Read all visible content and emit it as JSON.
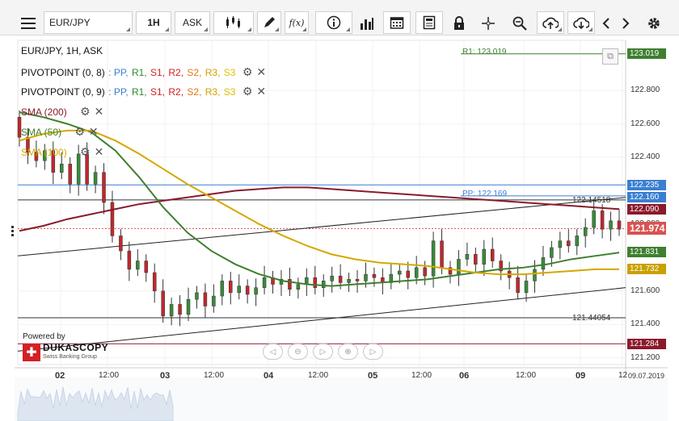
{
  "toolbar": {
    "instrument": "EUR/JPY",
    "timeframe": "1H",
    "side": "ASK",
    "fx_label": "f(x)"
  },
  "legend": {
    "title": "EUR/JPY, 1H, ASK",
    "pivots": [
      {
        "label": "PIVOTPOINT (0, 8)",
        "levels": [
          ": PP,",
          "R1,",
          "S1,",
          "R2,",
          "S2,",
          "R3,",
          "S3"
        ]
      },
      {
        "label": "PIVOTPOINT (0, 9)",
        "levels": [
          ": PP,",
          "R1,",
          "S1,",
          "R2,",
          "S2,",
          "R3,",
          "S3"
        ]
      }
    ],
    "level_colors": [
      "#3a7fd0",
      "#2a8a2a",
      "#d02020",
      "#d02020",
      "#e07a10",
      "#d4a000",
      "#e0c000"
    ],
    "sma": [
      {
        "label": "SMA (200)",
        "color": "#8b1a2b"
      },
      {
        "label": "SMA (50)",
        "color": "#3f7f2f"
      },
      {
        "label": "SMA (100)",
        "color": "#d4a800"
      }
    ]
  },
  "annotations": {
    "r1": "R1: 123.019",
    "pp": "PP: 122.169",
    "hline_high": "122.14518",
    "hline_low": "121.44054",
    "powered_by": "Powered by",
    "brand": "DUKASCOPY",
    "brand_sub": "Swiss Banking Group"
  },
  "price_tags": [
    {
      "value": "123.019",
      "color": "#3f7f2f",
      "y": 123.019
    },
    {
      "value": "122.235",
      "color": "#3a7fd0",
      "y": 122.235
    },
    {
      "value": "122.160",
      "color": "#3a7fd0",
      "y": 122.16
    },
    {
      "value": "122.090",
      "color": "#8b1a2b",
      "y": 122.09
    },
    {
      "value": "121.974",
      "color": "#d9534f",
      "y": 121.974
    },
    {
      "value": "121.831",
      "color": "#3f7f2f",
      "y": 121.831
    },
    {
      "value": "121.732",
      "color": "#c9a000",
      "y": 121.732
    },
    {
      "value": "121.284",
      "color": "#8b1a2b",
      "y": 121.284
    }
  ],
  "chart_data": {
    "type": "candlestick",
    "title": "EUR/JPY, 1H, ASK",
    "y_ticks": [
      "122.800",
      "122.600",
      "122.400",
      "122.000",
      "121.600",
      "121.400",
      "121.200"
    ],
    "y_tick_values": [
      122.8,
      122.6,
      122.4,
      122.0,
      121.6,
      121.4,
      121.2
    ],
    "ylim": [
      121.16,
      123.1
    ],
    "x_labels": [
      "02",
      "12:00",
      "03",
      "12:00",
      "04",
      "12:00",
      "05",
      "12:00",
      "06",
      "12:00",
      "09",
      "12",
      "09.07.2019"
    ],
    "x_day_labels": [
      "02",
      "03",
      "04",
      "05",
      "06",
      "09"
    ],
    "series": [
      {
        "name": "SMA (200)",
        "values": [
          121.96,
          121.99,
          122.03,
          122.06,
          122.09,
          122.12,
          122.14,
          122.16,
          122.18,
          122.2,
          122.21,
          122.22,
          122.22,
          122.21,
          122.2,
          122.19,
          122.18,
          122.17,
          122.16,
          122.15,
          122.14,
          122.13,
          122.12,
          122.11,
          122.1,
          122.09
        ]
      },
      {
        "name": "SMA (50)",
        "values": [
          122.67,
          122.64,
          122.6,
          122.55,
          122.44,
          122.28,
          122.1,
          121.95,
          121.84,
          121.76,
          121.7,
          121.66,
          121.64,
          121.63,
          121.64,
          121.65,
          121.66,
          121.67,
          121.69,
          121.71,
          121.73,
          121.74,
          121.76,
          121.79,
          121.81,
          121.83
        ]
      },
      {
        "name": "SMA (100)",
        "values": [
          122.5,
          122.54,
          122.56,
          122.56,
          122.5,
          122.42,
          122.33,
          122.24,
          122.16,
          122.08,
          122.0,
          121.93,
          121.87,
          121.82,
          121.79,
          121.77,
          121.76,
          121.75,
          121.73,
          121.71,
          121.7,
          121.7,
          121.71,
          121.72,
          121.73,
          121.73
        ]
      }
    ],
    "candles": [
      [
        122.64,
        122.52
      ],
      [
        122.52,
        122.43
      ],
      [
        122.43,
        122.38
      ],
      [
        122.38,
        122.44
      ],
      [
        122.44,
        122.31
      ],
      [
        122.31,
        122.36
      ],
      [
        122.36,
        122.24
      ],
      [
        122.24,
        122.42
      ],
      [
        122.42,
        122.24
      ],
      [
        122.24,
        122.31
      ],
      [
        122.31,
        122.13
      ],
      [
        122.13,
        121.93
      ],
      [
        121.93,
        121.84
      ],
      [
        121.84,
        121.73
      ],
      [
        121.73,
        121.78
      ],
      [
        121.78,
        121.71
      ],
      [
        121.71,
        121.6
      ],
      [
        121.6,
        121.45
      ],
      [
        121.45,
        121.52
      ],
      [
        121.52,
        121.46
      ],
      [
        121.46,
        121.55
      ],
      [
        121.55,
        121.59
      ],
      [
        121.59,
        121.51
      ],
      [
        121.51,
        121.57
      ],
      [
        121.57,
        121.66
      ],
      [
        121.66,
        121.59
      ],
      [
        121.59,
        121.63
      ],
      [
        121.63,
        121.58
      ],
      [
        121.58,
        121.62
      ],
      [
        121.62,
        121.68
      ],
      [
        121.68,
        121.64
      ],
      [
        121.64,
        121.67
      ],
      [
        121.67,
        121.61
      ],
      [
        121.61,
        121.64
      ],
      [
        121.64,
        121.68
      ],
      [
        121.68,
        121.62
      ],
      [
        121.62,
        121.66
      ],
      [
        121.66,
        121.69
      ],
      [
        121.69,
        121.65
      ],
      [
        121.65,
        121.67
      ],
      [
        121.67,
        121.66
      ],
      [
        121.66,
        121.7
      ],
      [
        121.7,
        121.68
      ],
      [
        121.68,
        121.65
      ],
      [
        121.65,
        121.7
      ],
      [
        121.7,
        121.72
      ],
      [
        121.72,
        121.68
      ],
      [
        121.68,
        121.74
      ],
      [
        121.74,
        121.69
      ],
      [
        121.69,
        121.9
      ],
      [
        121.9,
        121.74
      ],
      [
        121.74,
        121.7
      ],
      [
        121.7,
        121.79
      ],
      [
        121.79,
        121.82
      ],
      [
        121.82,
        121.76
      ],
      [
        121.76,
        121.85
      ],
      [
        121.85,
        121.78
      ],
      [
        121.78,
        121.72
      ],
      [
        121.72,
        121.68
      ],
      [
        121.68,
        121.59
      ],
      [
        121.59,
        121.66
      ],
      [
        121.66,
        121.73
      ],
      [
        121.73,
        121.8
      ],
      [
        121.8,
        121.86
      ],
      [
        121.86,
        121.9
      ],
      [
        121.9,
        121.87
      ],
      [
        121.87,
        121.93
      ],
      [
        121.93,
        121.98
      ],
      [
        121.98,
        122.08
      ],
      [
        122.08,
        121.97
      ],
      [
        121.97,
        122.02
      ],
      [
        122.02,
        121.97
      ]
    ]
  }
}
